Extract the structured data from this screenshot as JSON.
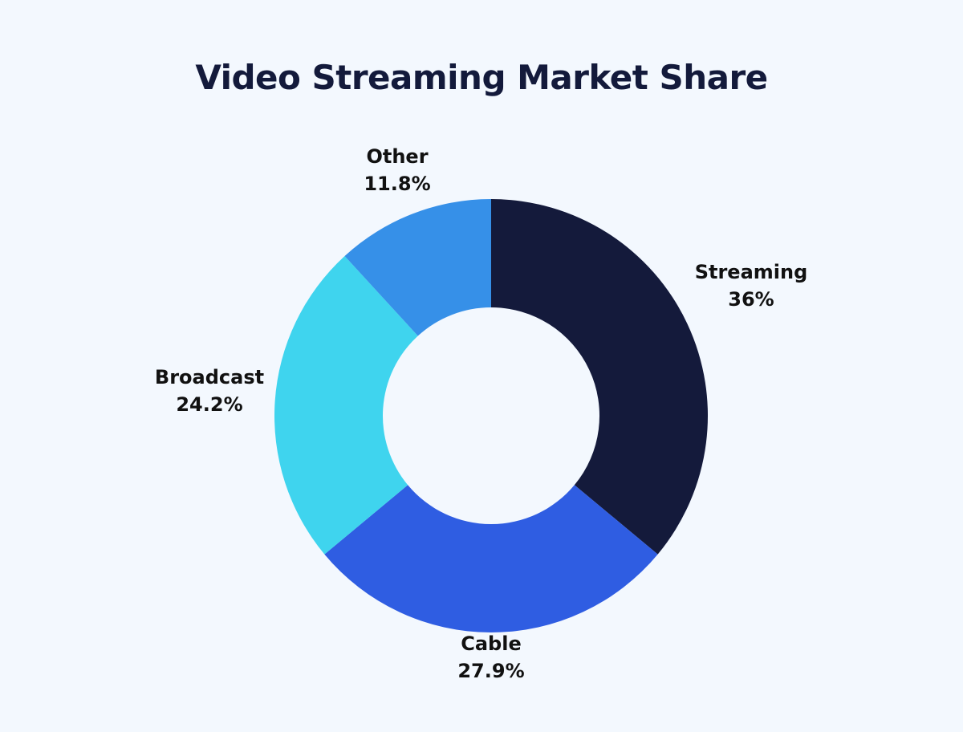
{
  "chart_data": {
    "type": "pie",
    "title": "Video Streaming Market Share",
    "categories": [
      "Streaming",
      "Cable",
      "Broadcast",
      "Other"
    ],
    "values": [
      36,
      27.9,
      24.2,
      11.8
    ],
    "value_labels": [
      "36%",
      "27.9%",
      "24.2%",
      "11.8%"
    ],
    "colors": [
      "#141a3b",
      "#2f5de2",
      "#3fd4ee",
      "#3690e8"
    ],
    "donut": true,
    "start": "12 o'clock",
    "direction": "clockwise"
  }
}
